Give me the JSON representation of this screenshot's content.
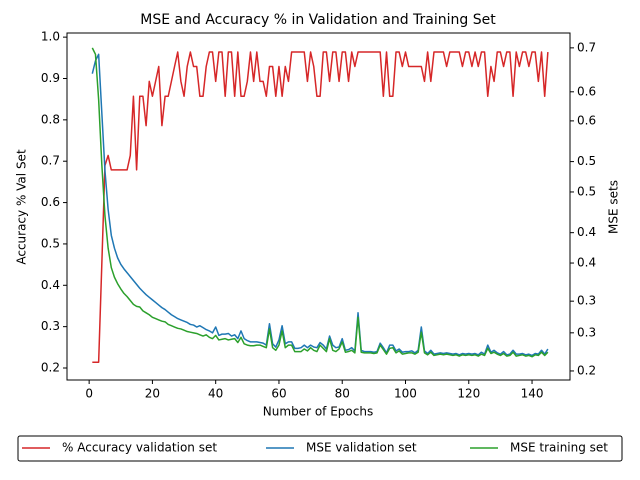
{
  "chart_data": {
    "type": "line",
    "title": "MSE and Accuracy % in Validation and Training Set",
    "xlabel": "Number of Epochs",
    "ylabel": "Accuracy % Val Set",
    "y2label": "MSE sets",
    "legend": "bottom",
    "xlim": [
      -7,
      152
    ],
    "xticks": [
      0,
      20,
      40,
      60,
      80,
      100,
      120,
      140
    ],
    "ylim": [
      0.171,
      1.01
    ],
    "yticks": [
      0.2,
      0.3,
      0.4,
      0.5,
      0.6,
      0.7,
      0.8,
      0.9,
      {
        "value": 1,
        "label": "1.0"
      }
    ],
    "y2lim": [
      0.186,
      0.723
    ],
    "y2ticks": [
      {
        "value": 0.2,
        "label": "0.2"
      },
      {
        "value": 0.259,
        "label": "0.3"
      },
      {
        "value": 0.308,
        "label": "0.3"
      },
      {
        "value": 0.367,
        "label": "0.4"
      },
      {
        "value": 0.414,
        "label": "0.4"
      },
      {
        "value": 0.477,
        "label": "0.5"
      },
      {
        "value": 0.524,
        "label": "0.5"
      },
      {
        "value": 0.587,
        "label": "0.6"
      },
      {
        "value": 0.632,
        "label": "0.6"
      },
      0.7
    ],
    "x": [
      1,
      2,
      3,
      4,
      5,
      6,
      7,
      8,
      9,
      10,
      11,
      12,
      13,
      14,
      15,
      16,
      17,
      18,
      19,
      20,
      21,
      22,
      23,
      24,
      25,
      26,
      27,
      28,
      29,
      30,
      31,
      32,
      33,
      34,
      35,
      36,
      37,
      38,
      39,
      40,
      41,
      42,
      43,
      44,
      45,
      46,
      47,
      48,
      49,
      50,
      51,
      52,
      53,
      54,
      55,
      56,
      57,
      58,
      59,
      60,
      61,
      62,
      63,
      64,
      65,
      66,
      67,
      68,
      69,
      70,
      71,
      72,
      73,
      74,
      75,
      76,
      77,
      78,
      79,
      80,
      81,
      82,
      83,
      84,
      85,
      86,
      87,
      88,
      89,
      90,
      91,
      92,
      93,
      94,
      95,
      96,
      97,
      98,
      99,
      100,
      101,
      102,
      103,
      104,
      105,
      106,
      107,
      108,
      109,
      110,
      111,
      112,
      113,
      114,
      115,
      116,
      117,
      118,
      119,
      120,
      121,
      122,
      123,
      124,
      125,
      126,
      127,
      128,
      129,
      130,
      131,
      132,
      133,
      134,
      135,
      136,
      137,
      138,
      139,
      140,
      141,
      142,
      143,
      144,
      145
    ],
    "series": [
      {
        "name": "% Accuracy validation set",
        "color": "#d62728",
        "axis": "y",
        "values": [
          0.214,
          0.214,
          0.214,
          0.45,
          0.69,
          0.714,
          0.679,
          0.679,
          0.679,
          0.679,
          0.679,
          0.679,
          0.714,
          0.857,
          0.679,
          0.857,
          0.857,
          0.786,
          0.893,
          0.857,
          0.893,
          0.929,
          0.786,
          0.857,
          0.857,
          0.893,
          0.929,
          0.964,
          0.893,
          0.857,
          0.929,
          0.964,
          0.929,
          0.929,
          0.857,
          0.857,
          0.929,
          0.964,
          0.964,
          0.893,
          0.964,
          0.964,
          0.857,
          0.964,
          0.964,
          0.857,
          0.964,
          0.857,
          0.857,
          0.893,
          0.964,
          0.893,
          0.964,
          0.893,
          0.893,
          0.857,
          0.929,
          0.929,
          0.857,
          0.929,
          0.857,
          0.929,
          0.893,
          0.964,
          0.964,
          0.964,
          0.964,
          0.964,
          0.893,
          0.964,
          0.929,
          0.857,
          0.857,
          0.964,
          0.964,
          0.893,
          0.964,
          0.964,
          0.893,
          0.964,
          0.964,
          0.893,
          0.964,
          0.929,
          0.964,
          0.964,
          0.964,
          0.964,
          0.964,
          0.964,
          0.964,
          0.964,
          0.857,
          0.964,
          0.857,
          0.857,
          0.964,
          0.964,
          0.929,
          0.964,
          0.929,
          0.929,
          0.929,
          0.929,
          0.929,
          0.893,
          0.964,
          0.893,
          0.964,
          0.964,
          0.964,
          0.964,
          0.929,
          0.964,
          0.964,
          0.964,
          0.964,
          0.929,
          0.964,
          0.964,
          0.929,
          0.964,
          0.929,
          0.964,
          0.964,
          0.857,
          0.929,
          0.893,
          0.964,
          0.964,
          0.929,
          0.964,
          0.964,
          0.857,
          0.964,
          0.929,
          0.964,
          0.964,
          0.929,
          0.964,
          0.964,
          0.893,
          0.964,
          0.857,
          0.964
        ]
      },
      {
        "name": "MSE validation set",
        "color": "#1f77b4",
        "axis": "y2",
        "values": [
          0.66,
          0.68,
          0.69,
          0.6,
          0.51,
          0.45,
          0.41,
          0.39,
          0.375,
          0.365,
          0.358,
          0.352,
          0.346,
          0.34,
          0.334,
          0.328,
          0.323,
          0.318,
          0.314,
          0.31,
          0.306,
          0.302,
          0.298,
          0.295,
          0.291,
          0.287,
          0.284,
          0.281,
          0.279,
          0.277,
          0.275,
          0.272,
          0.271,
          0.268,
          0.27,
          0.267,
          0.264,
          0.262,
          0.259,
          0.268,
          0.255,
          0.257,
          0.257,
          0.258,
          0.254,
          0.256,
          0.25,
          0.262,
          0.25,
          0.247,
          0.245,
          0.245,
          0.245,
          0.244,
          0.243,
          0.24,
          0.273,
          0.242,
          0.237,
          0.248,
          0.27,
          0.242,
          0.245,
          0.245,
          0.235,
          0.235,
          0.236,
          0.24,
          0.236,
          0.24,
          0.237,
          0.236,
          0.244,
          0.24,
          0.234,
          0.254,
          0.24,
          0.236,
          0.237,
          0.25,
          0.232,
          0.233,
          0.236,
          0.231,
          0.29,
          0.232,
          0.23,
          0.23,
          0.23,
          0.229,
          0.23,
          0.243,
          0.236,
          0.228,
          0.24,
          0.24,
          0.231,
          0.234,
          0.229,
          0.23,
          0.23,
          0.231,
          0.228,
          0.232,
          0.268,
          0.231,
          0.227,
          0.232,
          0.226,
          0.227,
          0.228,
          0.227,
          0.228,
          0.227,
          0.226,
          0.227,
          0.225,
          0.227,
          0.226,
          0.227,
          0.226,
          0.227,
          0.225,
          0.229,
          0.226,
          0.24,
          0.229,
          0.232,
          0.228,
          0.226,
          0.23,
          0.225,
          0.226,
          0.232,
          0.226,
          0.226,
          0.227,
          0.225,
          0.226,
          0.224,
          0.227,
          0.226,
          0.232,
          0.226,
          0.234
        ]
      },
      {
        "name": "MSE training set",
        "color": "#2ca02c",
        "axis": "y2",
        "values": [
          0.7,
          0.69,
          0.62,
          0.52,
          0.44,
          0.39,
          0.36,
          0.345,
          0.335,
          0.327,
          0.32,
          0.315,
          0.309,
          0.303,
          0.3,
          0.299,
          0.293,
          0.29,
          0.287,
          0.283,
          0.281,
          0.279,
          0.277,
          0.276,
          0.272,
          0.27,
          0.268,
          0.266,
          0.265,
          0.263,
          0.261,
          0.26,
          0.259,
          0.258,
          0.256,
          0.254,
          0.256,
          0.252,
          0.25,
          0.255,
          0.248,
          0.249,
          0.25,
          0.248,
          0.249,
          0.25,
          0.244,
          0.252,
          0.242,
          0.24,
          0.239,
          0.239,
          0.24,
          0.24,
          0.238,
          0.236,
          0.265,
          0.236,
          0.232,
          0.24,
          0.262,
          0.236,
          0.24,
          0.24,
          0.23,
          0.23,
          0.23,
          0.234,
          0.231,
          0.236,
          0.232,
          0.23,
          0.24,
          0.235,
          0.23,
          0.25,
          0.232,
          0.23,
          0.234,
          0.245,
          0.229,
          0.23,
          0.232,
          0.228,
          0.283,
          0.229,
          0.228,
          0.228,
          0.228,
          0.227,
          0.228,
          0.24,
          0.233,
          0.226,
          0.235,
          0.236,
          0.228,
          0.231,
          0.226,
          0.227,
          0.228,
          0.228,
          0.226,
          0.229,
          0.26,
          0.228,
          0.225,
          0.229,
          0.224,
          0.225,
          0.226,
          0.225,
          0.226,
          0.225,
          0.224,
          0.225,
          0.223,
          0.225,
          0.224,
          0.225,
          0.224,
          0.225,
          0.223,
          0.226,
          0.224,
          0.235,
          0.227,
          0.229,
          0.226,
          0.224,
          0.227,
          0.223,
          0.224,
          0.229,
          0.223,
          0.224,
          0.225,
          0.223,
          0.224,
          0.222,
          0.225,
          0.224,
          0.229,
          0.224,
          0.229
        ]
      }
    ]
  }
}
